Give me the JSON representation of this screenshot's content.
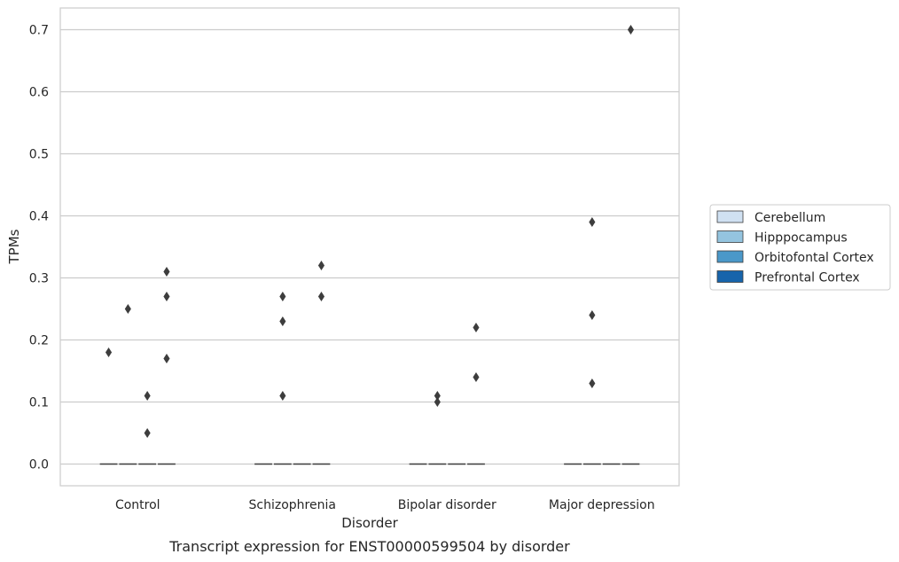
{
  "chart_data": {
    "type": "box",
    "xlabel": "Disorder",
    "ylabel": "TPMs",
    "caption": "Transcript expression for ENST00000599504 by disorder",
    "ylim": [
      -0.035,
      0.735
    ],
    "yticks": [
      0.0,
      0.1,
      0.2,
      0.3,
      0.4,
      0.5,
      0.6,
      0.7
    ],
    "ytick_labels": [
      "0.0",
      "0.1",
      "0.2",
      "0.3",
      "0.4",
      "0.5",
      "0.6",
      "0.7"
    ],
    "grid": "horizontal",
    "categories": [
      "Control",
      "Schizophrenia",
      "Bipolar disorder",
      "Major depression"
    ],
    "legend": {
      "placement": "right-outside"
    },
    "series": [
      {
        "name": "Cerebellum",
        "color": "#d0e1f2",
        "median": [
          0,
          0,
          0,
          0
        ],
        "outliers": [
          [
            0.18
          ],
          [],
          [],
          []
        ]
      },
      {
        "name": "Hipppocampus",
        "color": "#94c4df",
        "median": [
          0,
          0,
          0,
          0
        ],
        "outliers": [
          [
            0.25
          ],
          [
            0.27,
            0.23,
            0.11
          ],
          [
            0.11,
            0.1
          ],
          [
            0.39,
            0.24,
            0.13
          ]
        ]
      },
      {
        "name": "Orbitofontal Cortex",
        "color": "#4a98c9",
        "median": [
          0,
          0,
          0,
          0
        ],
        "outliers": [
          [
            0.11,
            0.05
          ],
          [],
          [],
          []
        ]
      },
      {
        "name": "Prefrontal Cortex",
        "color": "#1764ab",
        "median": [
          0,
          0,
          0,
          0
        ],
        "outliers": [
          [
            0.31,
            0.27,
            0.17
          ],
          [
            0.32,
            0.27
          ],
          [
            0.22,
            0.14
          ],
          [
            0.7
          ]
        ]
      }
    ]
  }
}
